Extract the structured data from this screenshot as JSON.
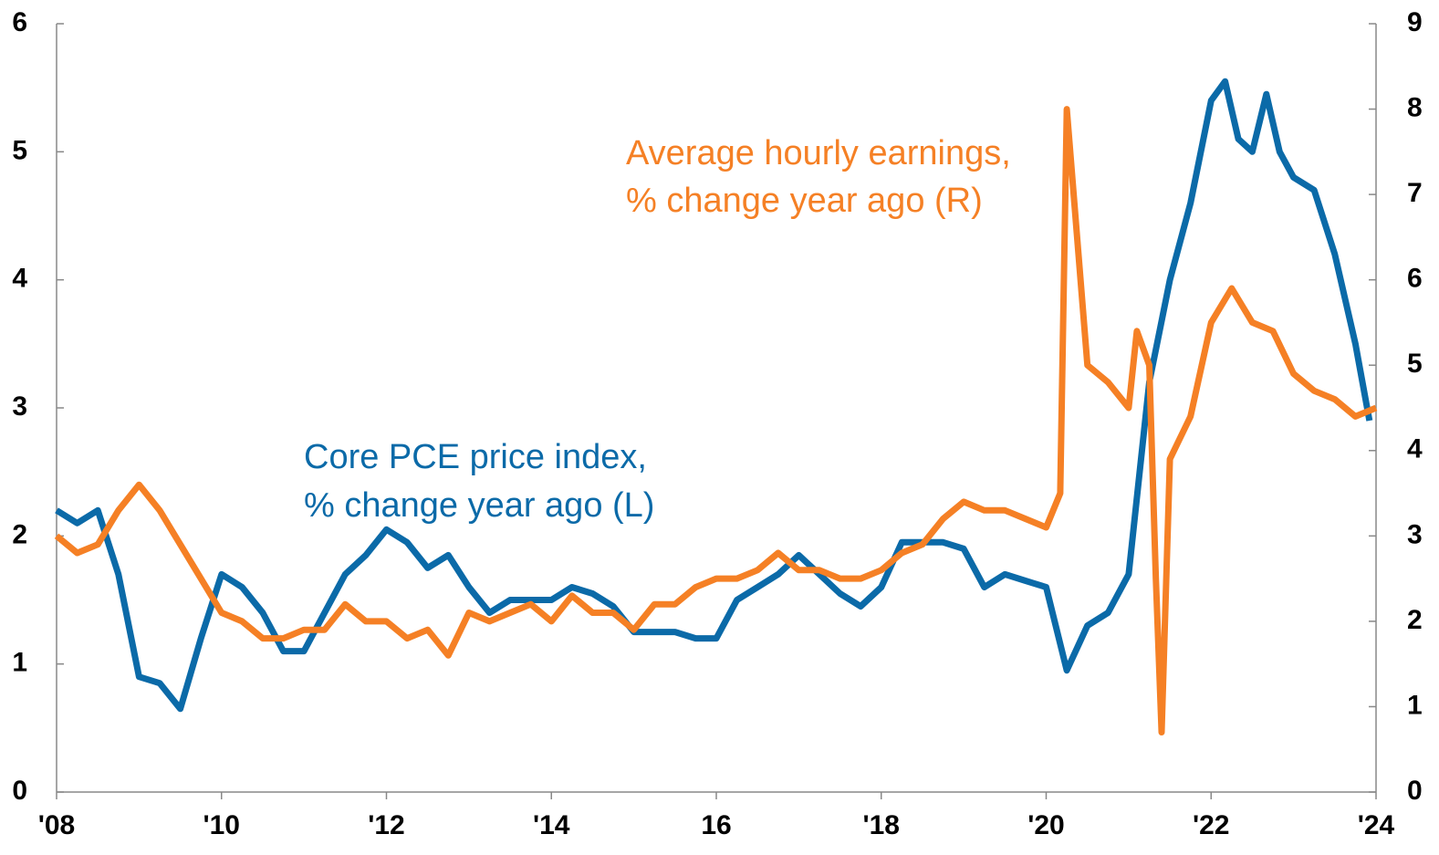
{
  "chart_data": {
    "type": "line",
    "annotations": [
      {
        "lines": [
          "Core PCE price index,",
          "% change year ago (L)"
        ],
        "color": "#0b6aa8"
      },
      {
        "lines": [
          "Average hourly earnings,",
          "% change year ago (R)"
        ],
        "color": "#f58025"
      }
    ],
    "xlim": [
      2008,
      2024
    ],
    "xticks": [
      {
        "value": 2008,
        "label": "'08"
      },
      {
        "value": 2010,
        "label": "'10"
      },
      {
        "value": 2012,
        "label": "'12"
      },
      {
        "value": 2014,
        "label": "'14"
      },
      {
        "value": 2016,
        "label": "16"
      },
      {
        "value": 2018,
        "label": "'18"
      },
      {
        "value": 2020,
        "label": "'20"
      },
      {
        "value": 2022,
        "label": "'22"
      },
      {
        "value": 2024,
        "label": "'24"
      }
    ],
    "ylim": [
      0,
      6
    ],
    "yticks": [
      0,
      1,
      2,
      3,
      4,
      5,
      6
    ],
    "y2lim": [
      0,
      9
    ],
    "y2ticks": [
      0,
      1,
      2,
      3,
      4,
      5,
      6,
      7,
      8,
      9
    ],
    "series": [
      {
        "name": "Core PCE price index, % change year ago",
        "color": "#0b6aa8",
        "axis": "y",
        "x": [
          2008.0,
          2008.25,
          2008.5,
          2008.75,
          2009.0,
          2009.25,
          2009.5,
          2009.75,
          2010.0,
          2010.25,
          2010.5,
          2010.75,
          2011.0,
          2011.25,
          2011.5,
          2011.75,
          2012.0,
          2012.25,
          2012.5,
          2012.75,
          2013.0,
          2013.25,
          2013.5,
          2013.75,
          2014.0,
          2014.25,
          2014.5,
          2014.75,
          2015.0,
          2015.25,
          2015.5,
          2015.75,
          2016.0,
          2016.25,
          2016.5,
          2016.75,
          2017.0,
          2017.25,
          2017.5,
          2017.75,
          2018.0,
          2018.25,
          2018.5,
          2018.75,
          2019.0,
          2019.25,
          2019.5,
          2019.75,
          2020.0,
          2020.25,
          2020.5,
          2020.75,
          2021.0,
          2021.25,
          2021.5,
          2021.75,
          2022.0,
          2022.17,
          2022.33,
          2022.5,
          2022.67,
          2022.83,
          2023.0,
          2023.25,
          2023.5,
          2023.75,
          2023.92
        ],
        "values": [
          2.2,
          2.1,
          2.2,
          1.7,
          0.9,
          0.85,
          0.65,
          1.2,
          1.7,
          1.6,
          1.4,
          1.1,
          1.1,
          1.4,
          1.7,
          1.85,
          2.05,
          1.95,
          1.75,
          1.85,
          1.6,
          1.4,
          1.5,
          1.5,
          1.5,
          1.6,
          1.55,
          1.45,
          1.25,
          1.25,
          1.25,
          1.2,
          1.2,
          1.5,
          1.6,
          1.7,
          1.85,
          1.7,
          1.55,
          1.45,
          1.6,
          1.95,
          1.95,
          1.95,
          1.9,
          1.6,
          1.7,
          1.65,
          1.6,
          0.95,
          1.3,
          1.4,
          1.7,
          3.2,
          4.0,
          4.6,
          5.4,
          5.55,
          5.1,
          5.0,
          5.45,
          5.0,
          4.8,
          4.7,
          4.2,
          3.5,
          2.9
        ]
      },
      {
        "name": "Average hourly earnings, % change year ago",
        "color": "#f58025",
        "axis": "y2",
        "x": [
          2008.0,
          2008.25,
          2008.5,
          2008.75,
          2009.0,
          2009.25,
          2009.5,
          2009.75,
          2010.0,
          2010.25,
          2010.5,
          2010.75,
          2011.0,
          2011.25,
          2011.5,
          2011.75,
          2012.0,
          2012.25,
          2012.5,
          2012.75,
          2013.0,
          2013.25,
          2013.5,
          2013.75,
          2014.0,
          2014.25,
          2014.5,
          2014.75,
          2015.0,
          2015.25,
          2015.5,
          2015.75,
          2016.0,
          2016.25,
          2016.5,
          2016.75,
          2017.0,
          2017.25,
          2017.5,
          2017.75,
          2018.0,
          2018.25,
          2018.5,
          2018.75,
          2019.0,
          2019.25,
          2019.5,
          2019.75,
          2020.0,
          2020.17,
          2020.25,
          2020.5,
          2020.75,
          2021.0,
          2021.1,
          2021.25,
          2021.33,
          2021.4,
          2021.5,
          2021.75,
          2022.0,
          2022.25,
          2022.5,
          2022.75,
          2023.0,
          2023.25,
          2023.5,
          2023.75,
          2024.0
        ],
        "values": [
          3.0,
          2.8,
          2.9,
          3.3,
          3.6,
          3.3,
          2.9,
          2.5,
          2.1,
          2.0,
          1.8,
          1.8,
          1.9,
          1.9,
          2.2,
          2.0,
          2.0,
          1.8,
          1.9,
          1.6,
          2.1,
          2.0,
          2.1,
          2.2,
          2.0,
          2.3,
          2.1,
          2.1,
          1.9,
          2.2,
          2.2,
          2.4,
          2.5,
          2.5,
          2.6,
          2.8,
          2.6,
          2.6,
          2.5,
          2.5,
          2.6,
          2.8,
          2.9,
          3.2,
          3.4,
          3.3,
          3.3,
          3.2,
          3.1,
          3.5,
          8.0,
          5.0,
          4.8,
          4.5,
          5.4,
          5.0,
          2.5,
          0.7,
          3.9,
          4.4,
          5.5,
          5.9,
          5.5,
          5.4,
          4.9,
          4.7,
          4.6,
          4.4,
          4.5
        ]
      }
    ]
  }
}
